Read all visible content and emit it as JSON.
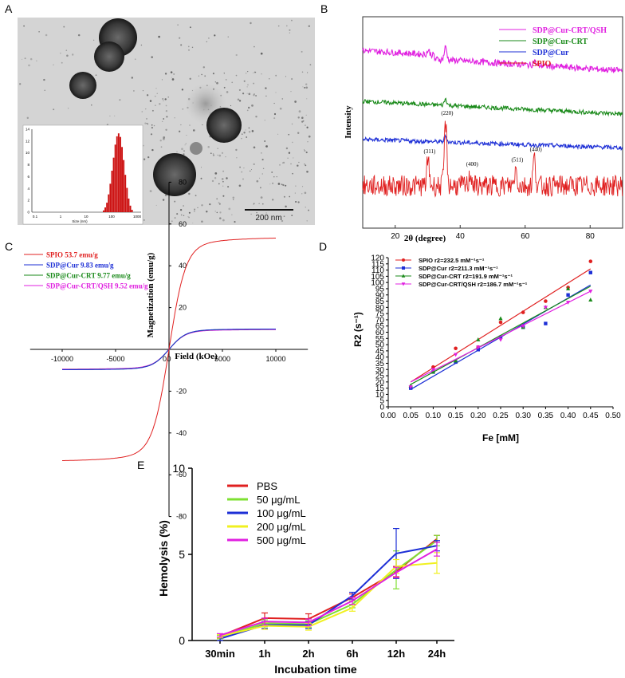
{
  "panel_labels": {
    "a": "A",
    "b": "B",
    "c": "C",
    "d": "D",
    "e": "E"
  },
  "colors": {
    "red": "#e02020",
    "green": "#1a8a1a",
    "blue": "#1d2fd6",
    "magenta": "#e020e0",
    "lime": "#7ee032",
    "yellow": "#f0f020"
  },
  "panel_a": {
    "scale_bar": "200 nm",
    "inset_xlabel": "Size (nm)",
    "inset_yticks": [
      "0",
      "2",
      "4",
      "6",
      "8",
      "10",
      "12",
      "14"
    ],
    "inset_xticks": [
      "0.1",
      "1",
      "10",
      "100",
      "1000"
    ]
  },
  "chart_data": [
    {
      "id": "B",
      "type": "line",
      "title": "",
      "xlabel": "2θ (degree)",
      "ylabel": "Intensity",
      "xlim": [
        10,
        90
      ],
      "xticks": [
        20,
        40,
        60,
        80
      ],
      "legend": [
        "SDP@Cur-CRT/QSH",
        "SDP@Cur-CRT",
        "SDP@Cur",
        "SPIO"
      ],
      "series": [
        {
          "name": "SDP@Cur-CRT/QSH",
          "color": "#e020e0",
          "baseline": 0.82,
          "noise": 0.015,
          "peaks": [
            [
              35.5,
              0.06
            ],
            [
              30.2,
              0.02
            ],
            [
              62.8,
              0.02
            ]
          ]
        },
        {
          "name": "SDP@Cur-CRT",
          "color": "#1a8a1a",
          "baseline": 0.6,
          "noise": 0.01,
          "peaks": [
            [
              35.5,
              0.03
            ]
          ]
        },
        {
          "name": "SDP@Cur",
          "color": "#1d2fd6",
          "baseline": 0.42,
          "noise": 0.01,
          "peaks": [
            [
              35.5,
              0.025
            ]
          ]
        },
        {
          "name": "SPIO",
          "color": "#e02020",
          "baseline": 0.2,
          "noise": 0.05,
          "peaks": [
            [
              30.1,
              0.12
            ],
            [
              35.5,
              0.3
            ],
            [
              43.2,
              0.06
            ],
            [
              57.1,
              0.08
            ],
            [
              62.8,
              0.13
            ]
          ]
        }
      ],
      "annotations": [
        {
          "label": "(311)",
          "x": 30.1
        },
        {
          "label": "(220)",
          "x": 35.5
        },
        {
          "label": "(400)",
          "x": 43.2
        },
        {
          "label": "(511)",
          "x": 57.1
        },
        {
          "label": "(440)",
          "x": 62.8
        }
      ]
    },
    {
      "id": "C",
      "type": "line",
      "xlabel": "Field (kOe)",
      "ylabel": "Magnetization (emu/g)",
      "xlim": [
        -13000,
        13000
      ],
      "ylim": [
        -80,
        80
      ],
      "xticks": [
        -10000,
        -5000,
        0,
        5000,
        10000
      ],
      "yticks": [
        -80,
        -60,
        -40,
        -20,
        0,
        20,
        40,
        60,
        80
      ],
      "series": [
        {
          "name": "SPIO 53.7 emu/g",
          "color": "#e02020",
          "ms": 53.7,
          "k": 1500
        },
        {
          "name": "SDP@Cur 9.83 emu/g",
          "color": "#1d2fd6",
          "ms": 9.83,
          "k": 1500
        },
        {
          "name": "SDP@Cur-CRT 9.77 emu/g",
          "color": "#1a8a1a",
          "ms": 9.77,
          "k": 1500
        },
        {
          "name": "SDP@Cur-CRT/QSH 9.52 emu/g",
          "color": "#e020e0",
          "ms": 9.52,
          "k": 1500
        }
      ]
    },
    {
      "id": "D",
      "type": "scatter",
      "xlabel": "Fe [mM]",
      "ylabel": "R2 (s⁻¹)",
      "xlim": [
        0,
        0.5
      ],
      "ylim": [
        0,
        120
      ],
      "xticks": [
        0,
        0.05,
        0.1,
        0.15,
        0.2,
        0.25,
        0.3,
        0.35,
        0.4,
        0.45,
        0.5
      ],
      "yticks": [
        0,
        5,
        10,
        15,
        20,
        25,
        30,
        35,
        40,
        45,
        50,
        55,
        60,
        65,
        70,
        75,
        80,
        85,
        90,
        95,
        100,
        105,
        110,
        115,
        120
      ],
      "x": [
        0.05,
        0.1,
        0.15,
        0.2,
        0.25,
        0.3,
        0.35,
        0.4,
        0.45
      ],
      "series": [
        {
          "name": "SPIO",
          "r2_label": "r2=232.5 mM⁻¹s⁻¹",
          "color": "#e02020",
          "marker": "circle",
          "values": [
            16,
            32,
            47,
            48,
            68,
            76,
            85,
            96,
            117
          ],
          "fit": [
            0.05,
            20,
            0.45,
            111
          ]
        },
        {
          "name": "SDP@Cur",
          "r2_label": "r2=211.3 mM⁻¹s⁻¹",
          "color": "#1d2fd6",
          "marker": "square",
          "values": [
            15,
            28,
            36,
            46,
            56,
            64,
            67,
            90,
            108
          ],
          "fit": [
            0.05,
            14,
            0.45,
            98
          ]
        },
        {
          "name": "SDP@Cur-CRT",
          "r2_label": "r2=191.9 mM⁻¹s⁻¹",
          "color": "#1a8a1a",
          "marker": "triangle",
          "values": [
            17,
            28,
            37,
            54,
            71,
            64,
            80,
            95,
            86
          ],
          "fit": [
            0.05,
            18,
            0.45,
            97
          ]
        },
        {
          "name": "SDP@Cur-CRT/QSH",
          "r2_label": "r2=186.7 mM⁻¹s⁻¹",
          "color": "#e020e0",
          "marker": "tri-down",
          "values": [
            16,
            30,
            42,
            48,
            54,
            65,
            80,
            84,
            93
          ],
          "fit": [
            0.05,
            20,
            0.45,
            93
          ]
        }
      ]
    },
    {
      "id": "E",
      "type": "line",
      "xlabel": "Incubation time",
      "ylabel": "Hemolysis (%)",
      "categories": [
        "30min",
        "1h",
        "2h",
        "6h",
        "12h",
        "24h"
      ],
      "ylim": [
        0,
        10
      ],
      "yticks": [
        0,
        5,
        10
      ],
      "series": [
        {
          "name": "PBS",
          "color": "#e02020",
          "values": [
            0.25,
            1.3,
            1.25,
            2.5,
            4.0,
            5.9
          ],
          "err": [
            0.1,
            0.3,
            0.3,
            0.2,
            0.3,
            0.2
          ]
        },
        {
          "name": "50 μg/mL",
          "color": "#7ee032",
          "values": [
            0.2,
            1.0,
            0.95,
            2.1,
            4.1,
            5.8
          ],
          "err": [
            0.1,
            0.2,
            0.2,
            0.2,
            1.1,
            0.3
          ]
        },
        {
          "name": "100 μg/mL",
          "color": "#1d2fd6",
          "values": [
            0.1,
            0.9,
            0.9,
            2.6,
            5.05,
            5.5
          ],
          "err": [
            0.1,
            0.2,
            0.2,
            0.2,
            1.45,
            0.3
          ]
        },
        {
          "name": "200 μg/mL",
          "color": "#f0f020",
          "values": [
            0.25,
            0.85,
            0.8,
            1.9,
            4.3,
            4.5
          ],
          "err": [
            0.1,
            0.2,
            0.2,
            0.2,
            0.4,
            0.6
          ]
        },
        {
          "name": "500 μg/mL",
          "color": "#e020e0",
          "values": [
            0.3,
            1.1,
            1.05,
            2.3,
            3.95,
            5.3
          ],
          "err": [
            0.1,
            0.2,
            0.2,
            0.2,
            0.3,
            0.4
          ]
        }
      ]
    }
  ]
}
